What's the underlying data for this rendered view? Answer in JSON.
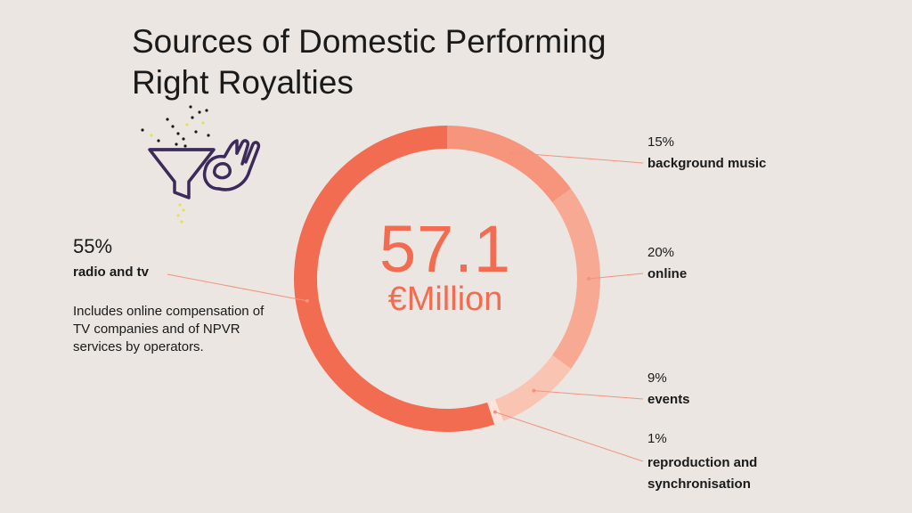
{
  "title": "Sources of Domestic Performing Right Royalties",
  "total": {
    "value": "57.1",
    "unit": "€Million"
  },
  "radio_note": "Includes online compensation of TV companies and of NPVR services by operators.",
  "icons": [
    "funnel-icon",
    "ok-hand-icon"
  ],
  "colors": {
    "background": "#ebe6e1",
    "accent": "#f26c52",
    "icon_outline": "#3b2a5a",
    "dots": "#1a1a1a",
    "dots_yellow": "#e6e055"
  },
  "chart_data": {
    "type": "pie",
    "style": "donut",
    "title": "Sources of Domestic Performing Right Royalties",
    "total": 57.1,
    "total_unit": "€Million",
    "slices": [
      {
        "percent_label": "15%",
        "label": "background music",
        "value": 15,
        "color": "#f7957c"
      },
      {
        "percent_label": "20%",
        "label": "online",
        "value": 20,
        "color": "#f8a993"
      },
      {
        "percent_label": "9%",
        "label": "events",
        "value": 9,
        "color": "#fac4b3"
      },
      {
        "percent_label": "1%",
        "label": "reproduction and synchronisation",
        "value": 1,
        "color": "#fde4da"
      },
      {
        "percent_label": "55%",
        "label": "radio and tv",
        "value": 55,
        "color": "#f26c52"
      }
    ]
  }
}
